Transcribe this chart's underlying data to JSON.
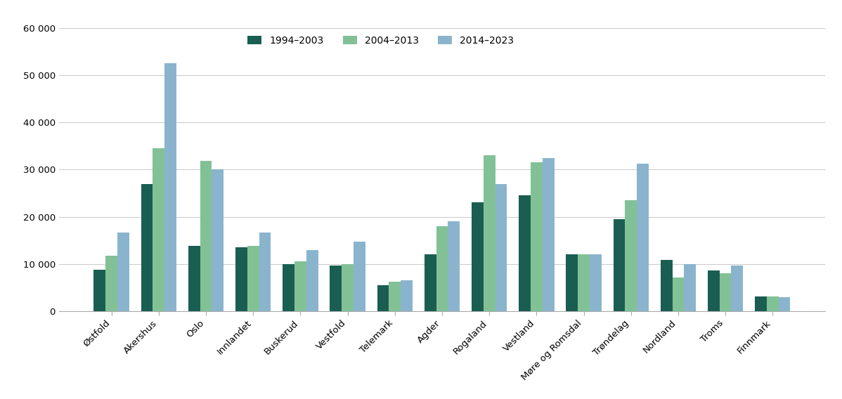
{
  "categories": [
    "Østfold",
    "Akershus",
    "Oslo",
    "Innlandet",
    "Buskerud",
    "Vestfold",
    "Telemark",
    "Agder",
    "Rogaland",
    "Vestland",
    "Møre og Romsdal",
    "Trøndelag",
    "Nordland",
    "Troms",
    "Finnmark"
  ],
  "series": [
    {
      "label": "1994–2003",
      "color": "#1a5e52",
      "values": [
        8800,
        27000,
        13800,
        13500,
        9900,
        9700,
        5500,
        12000,
        23000,
        24500,
        12000,
        19500,
        10800,
        8700,
        3200
      ]
    },
    {
      "label": "2004–2013",
      "color": "#82c196",
      "values": [
        11800,
        34500,
        31800,
        13800,
        10500,
        10000,
        6200,
        18000,
        33000,
        31500,
        12000,
        23500,
        7200,
        8000,
        3100
      ]
    },
    {
      "label": "2014–2023",
      "color": "#8ab4cd",
      "values": [
        16600,
        52500,
        30000,
        16700,
        13000,
        14800,
        6600,
        19000,
        27000,
        32500,
        12000,
        31300,
        10000,
        9700,
        3000
      ]
    }
  ],
  "ylim": [
    0,
    60000
  ],
  "yticks": [
    0,
    10000,
    20000,
    30000,
    40000,
    50000,
    60000
  ],
  "ytick_labels": [
    "0",
    "10 000",
    "20 000",
    "30 000",
    "40 000",
    "50 000",
    "60 000"
  ],
  "background_color": "#ffffff",
  "grid_color": "#cccccc",
  "bar_width": 0.25,
  "tick_fontsize": 9.5,
  "legend_fontsize": 10
}
